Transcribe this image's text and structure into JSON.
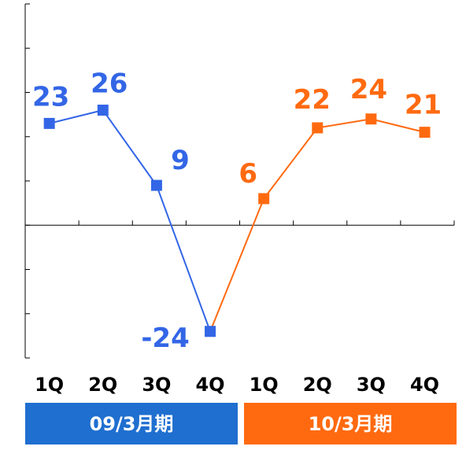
{
  "chart_data": {
    "type": "line",
    "categories": [
      "1Q",
      "2Q",
      "3Q",
      "4Q",
      "1Q",
      "2Q",
      "3Q",
      "4Q"
    ],
    "series": [
      {
        "name": "09/3月期",
        "color": "#3366e6",
        "values": [
          23,
          26,
          9,
          -24,
          null,
          null,
          null,
          null
        ]
      },
      {
        "name": "10/3月期",
        "color": "#ff6a10",
        "values": [
          null,
          null,
          null,
          null,
          6,
          22,
          24,
          21
        ]
      }
    ],
    "ylim": [
      -30,
      50
    ],
    "yticks": [
      -30,
      -20,
      -10,
      0,
      10,
      20,
      30,
      40,
      50
    ]
  }
}
